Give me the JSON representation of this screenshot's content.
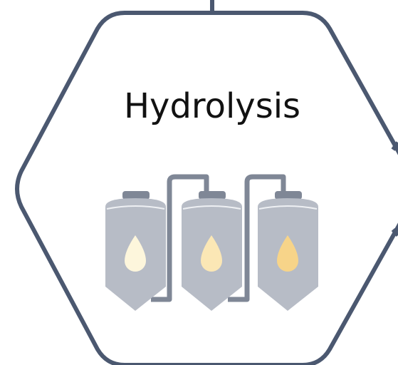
{
  "title": "Hydrolysis"
}
